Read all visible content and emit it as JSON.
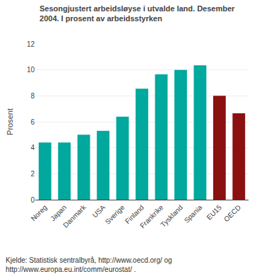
{
  "chart_data": {
    "type": "bar",
    "title": "Sesongjustert arbeidsløyse i utvalde land. Desember\n2004. I prosent av arbeidsstyrken",
    "ylabel": "Prosent",
    "categories": [
      "Noreg",
      "Japan",
      "Danmark",
      "USA",
      "Sverige",
      "Finland",
      "Frankrike",
      "Tyskland",
      "Spania",
      "EU15",
      "OECD"
    ],
    "values": [
      4.4,
      4.4,
      5.0,
      5.3,
      6.4,
      8.55,
      9.65,
      10.0,
      10.35,
      8.0,
      6.65
    ],
    "colors": [
      "#00A89D",
      "#00A89D",
      "#00A89D",
      "#00A89D",
      "#00A89D",
      "#00A89D",
      "#00A89D",
      "#00A89D",
      "#00A89D",
      "#8B1010",
      "#8B1010"
    ],
    "ylim": [
      0,
      12
    ],
    "yticks": [
      0,
      2,
      4,
      6,
      8,
      10,
      12
    ],
    "grid": true,
    "annotations": [
      "Kjelde: Statistisk sentralbyrå, http://www.oecd.org/ og\nhttp://www.europa.eu.int/comm/eurostat/ ."
    ]
  }
}
